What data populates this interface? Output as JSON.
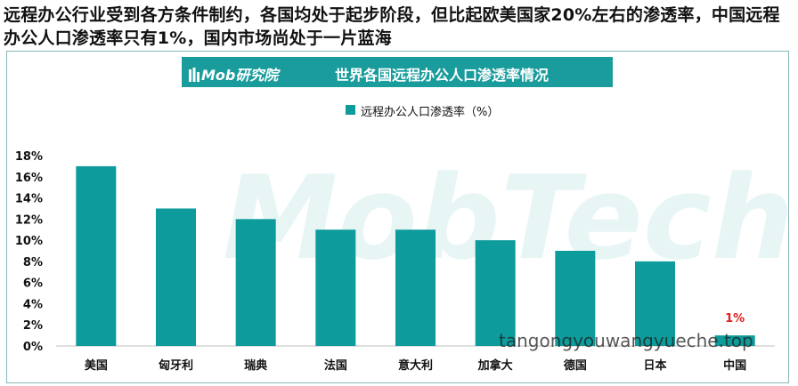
{
  "headline": "远程办公行业受到各方条件制约，各国均处于起步阶段，但比起欧美国家20%左右的渗透率，中国远程办公人口渗透率只有1%，国内市场尚处于一片蓝海",
  "banner": {
    "brand": "Mob研究院",
    "title": "世界各国远程办公人口渗透率情况",
    "color": "#1a9c9c"
  },
  "watermark": {
    "logo_text": "MobTech",
    "site_text": "tangongyouwangyueche.top"
  },
  "chart_data": {
    "type": "bar",
    "categories": [
      "美国",
      "匈牙利",
      "瑞典",
      "法国",
      "意大利",
      "加拿大",
      "德国",
      "日本",
      "中国"
    ],
    "series": [
      {
        "name": "远程办公人口渗透率（%）",
        "values": [
          17,
          13,
          12,
          11,
          11,
          10,
          9,
          8,
          1
        ]
      }
    ],
    "ylim": [
      0,
      18
    ],
    "yticks": [
      "0%",
      "2%",
      "4%",
      "6%",
      "8%",
      "10%",
      "12%",
      "14%",
      "16%",
      "18%"
    ],
    "data_labels": [
      {
        "category": "中国",
        "text": "1%"
      }
    ],
    "legend_position": "top-center",
    "grid": false,
    "bar_color": "#0e9b9b",
    "label_color": "#e02020"
  }
}
